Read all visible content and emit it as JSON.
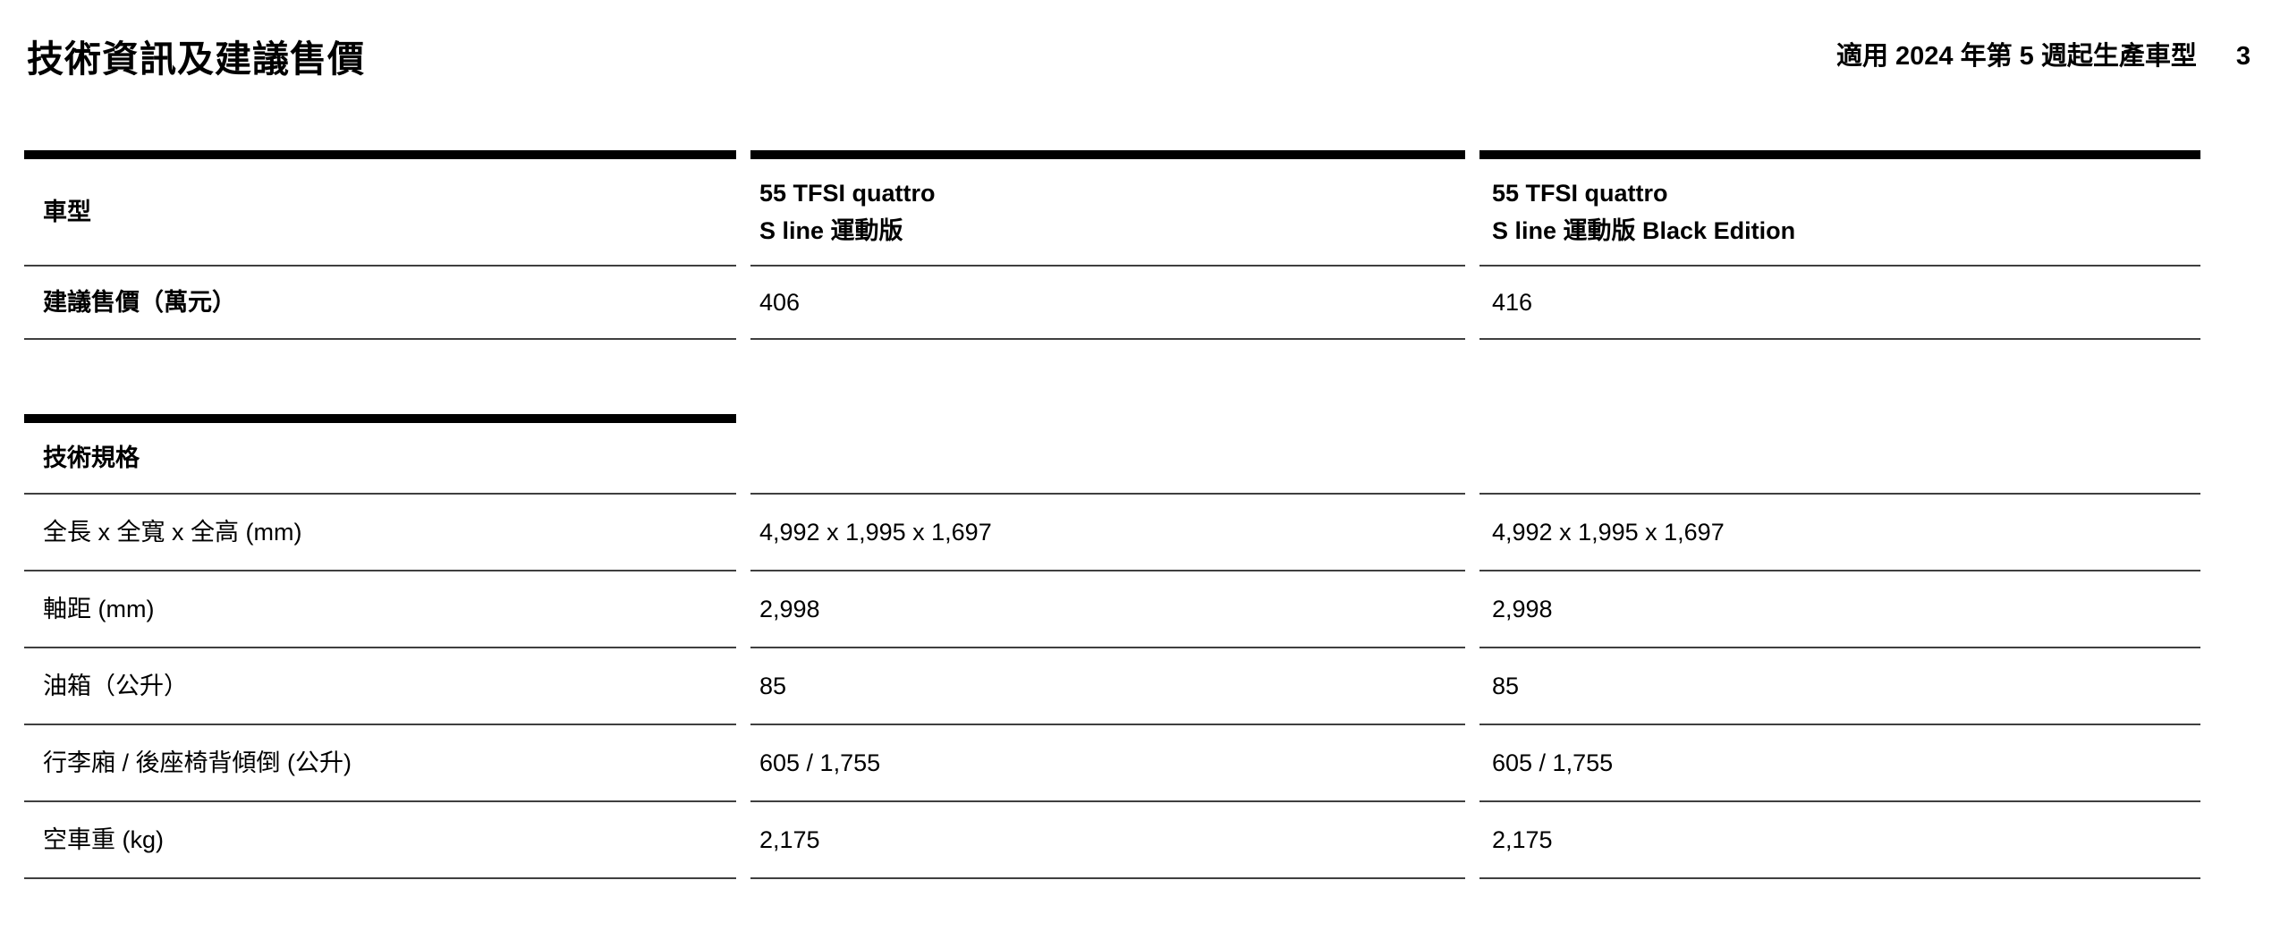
{
  "page": {
    "title": "技術資訊及建議售價",
    "applicability_note": "適用 2024 年第 5 週起生產車型",
    "page_number": "3"
  },
  "colors": {
    "text": "#000000",
    "rule_thick": "#000000",
    "rule_thin": "#3f3f3f",
    "background": "#ffffff"
  },
  "table": {
    "model_row_label": "車型",
    "price_row_label": "建議售價（萬元）",
    "columns": [
      {
        "model_line1": "55 TFSI quattro",
        "model_line2": "S line 運動版",
        "price": "406"
      },
      {
        "model_line1": "55 TFSI quattro",
        "model_line2": "S line 運動版 Black Edition",
        "price": "416"
      }
    ],
    "spec_section": {
      "header": "技術規格",
      "rows": [
        {
          "label": "全長 x 全寬 x 全高 (mm)",
          "values": [
            "4,992 x 1,995 x 1,697",
            "4,992 x 1,995 x 1,697"
          ]
        },
        {
          "label": "軸距 (mm)",
          "values": [
            "2,998",
            "2,998"
          ]
        },
        {
          "label": "油箱（公升）",
          "values": [
            "85",
            "85"
          ]
        },
        {
          "label": "行李廂 / 後座椅背傾倒 (公升)",
          "values": [
            "605 / 1,755",
            "605 / 1,755"
          ]
        },
        {
          "label": "空車重 (kg)",
          "values": [
            "2,175",
            "2,175"
          ]
        }
      ]
    }
  }
}
